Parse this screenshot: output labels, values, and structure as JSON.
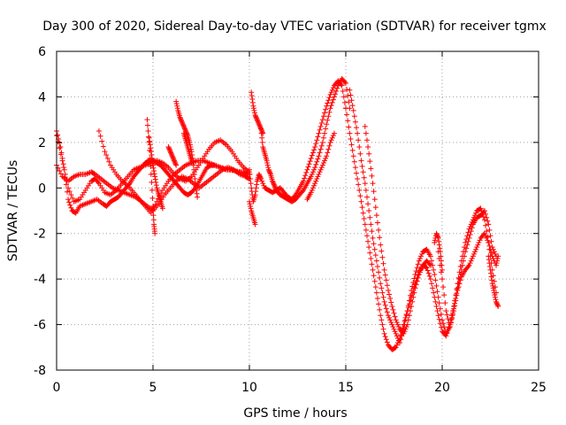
{
  "chart_data": {
    "type": "scatter",
    "title": "Day 300 of 2020, Sidereal Day-to-day VTEC variation (SDTVAR) for receiver tgmx",
    "xlabel": "GPS time / hours",
    "ylabel": "SDTVAR / TECUs",
    "xlim": [
      0,
      25
    ],
    "ylim": [
      -8,
      6
    ],
    "xticks": [
      "0",
      "5",
      "10",
      "15",
      "20",
      "25"
    ],
    "yticks": [
      "-8",
      "-6",
      "-4",
      "-2",
      "0",
      "2",
      "4",
      "6"
    ],
    "grid": true,
    "marker": "+",
    "color": "#ff0000",
    "series": [
      {
        "name": "s1",
        "x": [
          0.0,
          0.2,
          0.4,
          0.6,
          0.8,
          1.0,
          1.2,
          1.5,
          1.8,
          2.1,
          2.4,
          2.6,
          2.8,
          3.0,
          3.2,
          3.4,
          3.6,
          3.8,
          4.0,
          4.2,
          4.4,
          4.6,
          4.8,
          5.0,
          5.2,
          5.4,
          5.6,
          5.8,
          6.0,
          6.2,
          6.4,
          6.6,
          6.8,
          7.0,
          7.2,
          7.4,
          7.6,
          7.8,
          8.0,
          8.2,
          8.5,
          9.0,
          9.5,
          10.0
        ],
        "y": [
          2.5,
          1.8,
          0.8,
          -0.5,
          -1.0,
          -1.1,
          -0.8,
          -0.7,
          -0.6,
          -0.5,
          -0.7,
          -0.8,
          -0.6,
          -0.5,
          -0.4,
          -0.2,
          0.0,
          0.2,
          0.5,
          0.7,
          0.9,
          1.1,
          1.2,
          1.2,
          1.1,
          1.0,
          0.8,
          0.6,
          0.4,
          0.2,
          0.0,
          -0.2,
          -0.3,
          -0.2,
          0.0,
          0.3,
          0.6,
          0.9,
          1.0,
          1.0,
          0.9,
          0.8,
          0.7,
          0.6
        ]
      },
      {
        "name": "s2",
        "x": [
          0.0,
          0.3,
          0.6,
          0.9,
          1.2,
          1.5,
          1.8,
          2.0,
          2.2,
          2.5,
          2.8,
          3.1,
          3.4,
          3.7,
          4.0,
          4.3,
          4.6,
          4.9,
          5.2,
          5.5,
          5.8,
          6.1,
          6.4,
          6.7,
          7.0,
          7.3,
          7.6,
          7.9,
          8.2,
          8.5,
          8.8,
          9.1,
          9.4,
          9.7,
          10.0
        ],
        "y": [
          2.3,
          1.2,
          0.0,
          -0.6,
          -0.5,
          -0.1,
          0.3,
          0.4,
          0.2,
          -0.2,
          -0.3,
          -0.1,
          0.2,
          0.5,
          0.8,
          0.9,
          1.0,
          1.1,
          1.2,
          1.1,
          0.9,
          0.6,
          0.4,
          0.3,
          0.5,
          0.9,
          1.3,
          1.7,
          2.0,
          2.1,
          1.9,
          1.6,
          1.2,
          0.9,
          0.7
        ]
      },
      {
        "name": "s3",
        "x": [
          0.0,
          0.3,
          0.6,
          0.9,
          1.2,
          1.5,
          1.8,
          2.0,
          2.3,
          2.6,
          2.9,
          3.2,
          3.5,
          3.8,
          4.1,
          4.4,
          4.7,
          5.0,
          5.3,
          5.6,
          5.9,
          6.2,
          6.5,
          6.8,
          7.1,
          7.4,
          7.7,
          8.0,
          8.3,
          8.6,
          8.9,
          9.2,
          9.5,
          9.8,
          10.0
        ],
        "y": [
          1.0,
          0.5,
          0.3,
          0.5,
          0.6,
          0.6,
          0.7,
          0.6,
          0.4,
          0.2,
          0.0,
          -0.1,
          -0.2,
          -0.3,
          -0.4,
          -0.6,
          -0.8,
          -1.0,
          -0.7,
          -0.3,
          0.0,
          0.3,
          0.5,
          0.4,
          0.2,
          0.0,
          0.2,
          0.4,
          0.6,
          0.8,
          0.9,
          0.8,
          0.6,
          0.5,
          0.4
        ]
      },
      {
        "name": "s4",
        "x": [
          2.2,
          2.5,
          2.8,
          3.1,
          3.4,
          3.7,
          4.0,
          4.3,
          4.6,
          4.9,
          5.2,
          5.5,
          5.8,
          6.1,
          6.4,
          6.7,
          7.0,
          7.3,
          7.6,
          7.9,
          8.2,
          8.5,
          8.8,
          9.1,
          9.4,
          9.7,
          10.0
        ],
        "y": [
          2.5,
          1.6,
          1.0,
          0.6,
          0.3,
          0.1,
          -0.2,
          -0.5,
          -0.8,
          -1.1,
          -0.6,
          -0.1,
          0.3,
          0.6,
          0.8,
          1.0,
          1.1,
          1.2,
          1.2,
          1.1,
          1.0,
          0.9,
          0.8,
          0.8,
          0.7,
          0.7,
          0.6
        ]
      },
      {
        "name": "s5",
        "x": [
          4.7,
          4.8,
          4.9,
          5.0,
          5.05,
          5.1
        ],
        "y": [
          3.0,
          2.0,
          0.6,
          -0.8,
          -1.6,
          -2.0
        ]
      },
      {
        "name": "s6",
        "x": [
          4.8,
          4.9,
          5.0,
          5.1,
          5.2,
          5.3,
          5.4,
          5.5
        ],
        "y": [
          2.2,
          1.6,
          1.0,
          0.5,
          0.0,
          -0.3,
          -0.6,
          -0.9
        ]
      },
      {
        "name": "s7",
        "x": [
          6.2,
          6.3,
          6.4,
          6.5,
          6.6,
          6.7,
          6.8,
          6.9,
          7.0,
          7.1,
          7.2,
          7.3
        ],
        "y": [
          3.8,
          3.4,
          3.1,
          2.9,
          2.7,
          2.5,
          2.3,
          2.0,
          1.6,
          1.0,
          0.2,
          -0.4
        ]
      },
      {
        "name": "s8",
        "x": [
          6.6,
          6.7,
          6.8,
          6.9,
          7.0
        ],
        "y": [
          2.4,
          2.1,
          1.8,
          1.5,
          1.2
        ]
      },
      {
        "name": "s9",
        "x": [
          5.8,
          5.9,
          6.0,
          6.1,
          6.2
        ],
        "y": [
          1.8,
          1.6,
          1.4,
          1.2,
          1.0
        ]
      },
      {
        "name": "s10",
        "x": [
          10.1,
          10.2,
          10.3,
          10.4,
          10.5,
          10.6,
          10.7
        ],
        "y": [
          4.2,
          3.6,
          3.2,
          3.0,
          2.8,
          2.6,
          2.4
        ]
      },
      {
        "name": "s11",
        "x": [
          10.0,
          10.1,
          10.2,
          10.3,
          10.4,
          10.5,
          10.6,
          10.8,
          11.0,
          11.2,
          11.4,
          11.6,
          11.8,
          12.0,
          12.2,
          12.4,
          12.6,
          12.8,
          13.0,
          13.2,
          13.4,
          13.6,
          13.8,
          14.0,
          14.2,
          14.4,
          14.6,
          14.8,
          15.0
        ],
        "y": [
          0.8,
          0.0,
          -0.6,
          -0.3,
          0.3,
          0.6,
          0.4,
          0.0,
          -0.1,
          -0.2,
          -0.1,
          0.0,
          -0.2,
          -0.4,
          -0.5,
          -0.3,
          0.0,
          0.3,
          0.8,
          1.3,
          1.8,
          2.4,
          3.0,
          3.6,
          4.1,
          4.5,
          4.7,
          4.5,
          3.5
        ]
      },
      {
        "name": "s12",
        "x": [
          10.0,
          10.1,
          10.2,
          10.3
        ],
        "y": [
          -0.6,
          -1.0,
          -1.3,
          -1.6
        ]
      },
      {
        "name": "s13",
        "x": [
          10.6,
          10.7,
          10.8,
          10.9,
          11.0,
          11.1,
          11.2,
          11.3,
          11.4,
          11.5,
          11.6,
          11.8,
          12.0,
          12.2,
          12.4,
          12.6,
          12.8,
          13.0,
          13.2,
          13.4,
          13.6,
          13.8,
          14.0,
          14.2,
          14.4,
          14.6,
          14.8,
          15.0,
          15.2
        ],
        "y": [
          2.6,
          1.8,
          1.5,
          1.2,
          0.8,
          0.6,
          0.3,
          0.1,
          -0.1,
          -0.2,
          -0.3,
          -0.4,
          -0.5,
          -0.6,
          -0.5,
          -0.3,
          -0.1,
          0.2,
          0.5,
          0.9,
          1.4,
          2.0,
          2.8,
          3.5,
          4.0,
          4.5,
          4.8,
          4.6,
          3.5
        ]
      },
      {
        "name": "s14",
        "x": [
          13.0,
          13.2,
          13.4,
          13.6,
          13.8,
          14.0,
          14.2,
          14.4
        ],
        "y": [
          -0.5,
          -0.2,
          0.2,
          0.6,
          1.0,
          1.4,
          2.0,
          2.4
        ]
      },
      {
        "name": "s15",
        "x": [
          15.0,
          15.2,
          15.4,
          15.6,
          15.8,
          16.0,
          16.2,
          16.4,
          16.6,
          16.8,
          17.0,
          17.2,
          17.4,
          17.6,
          17.8,
          18.0,
          18.2,
          18.4,
          18.6,
          18.8,
          19.0,
          19.2,
          19.4,
          19.6,
          19.8,
          20.0,
          20.2,
          20.4,
          20.6,
          20.8,
          21.0,
          21.2,
          21.4,
          21.6,
          21.8,
          22.0,
          22.2,
          22.4,
          22.6,
          22.8
        ],
        "y": [
          3.5,
          2.4,
          1.4,
          0.4,
          -0.6,
          -1.6,
          -2.6,
          -3.6,
          -4.6,
          -5.6,
          -6.4,
          -6.9,
          -7.1,
          -7.0,
          -6.6,
          -6.0,
          -5.4,
          -4.8,
          -4.2,
          -3.7,
          -3.4,
          -3.5,
          -4.0,
          -4.8,
          -5.6,
          -6.3,
          -6.5,
          -6.0,
          -5.2,
          -4.2,
          -3.2,
          -2.4,
          -1.8,
          -1.4,
          -1.0,
          -0.9,
          -1.4,
          -2.4,
          -3.6,
          -4.6
        ]
      },
      {
        "name": "s16",
        "x": [
          15.2,
          15.4,
          15.6,
          15.8,
          16.0,
          16.2,
          16.4,
          16.6,
          16.8,
          17.0,
          17.2,
          17.4,
          17.6,
          17.8,
          18.0,
          18.2,
          18.4,
          18.6,
          18.8,
          19.0,
          19.2,
          19.4,
          19.6,
          19.8,
          20.0,
          20.2,
          20.4,
          20.6,
          20.8,
          21.0,
          21.2,
          21.4,
          21.6,
          21.8,
          22.0,
          22.2,
          22.4,
          22.6,
          22.8
        ],
        "y": [
          4.3,
          3.4,
          2.4,
          1.2,
          0.2,
          -1.0,
          -2.2,
          -3.2,
          -4.2,
          -5.0,
          -5.6,
          -6.0,
          -6.4,
          -6.8,
          -6.2,
          -5.4,
          -4.5,
          -3.8,
          -3.2,
          -2.8,
          -2.7,
          -3.0,
          -3.8,
          -4.8,
          -5.8,
          -6.4,
          -6.1,
          -5.3,
          -4.4,
          -3.6,
          -2.8,
          -2.2,
          -1.6,
          -1.3,
          -1.2,
          -1.0,
          -1.6,
          -2.6,
          -3.0
        ]
      },
      {
        "name": "s17",
        "x": [
          16.0,
          16.2,
          16.4,
          16.6,
          16.8,
          17.0,
          17.2,
          17.4,
          17.6,
          17.8,
          18.0,
          18.2,
          18.4,
          18.6,
          18.8,
          19.0,
          19.2,
          19.4
        ],
        "y": [
          2.7,
          1.5,
          0.2,
          -1.2,
          -2.5,
          -3.6,
          -4.5,
          -5.2,
          -5.8,
          -6.2,
          -6.4,
          -6.0,
          -5.2,
          -4.4,
          -3.8,
          -3.4,
          -3.2,
          -3.4
        ]
      },
      {
        "name": "s18",
        "x": [
          19.8,
          20.0,
          20.2,
          20.4,
          20.6,
          20.8,
          21.0,
          21.2,
          21.4,
          21.6,
          21.8,
          22.0,
          22.2,
          22.4,
          22.6,
          22.8,
          22.9
        ],
        "y": [
          -2.8,
          -4.0,
          -5.4,
          -6.1,
          -5.4,
          -4.5,
          -3.9,
          -3.6,
          -3.4,
          -3.0,
          -2.6,
          -2.2,
          -2.0,
          -2.4,
          -3.0,
          -3.4,
          -3.0
        ]
      },
      {
        "name": "s19",
        "x": [
          19.6,
          19.7,
          19.8,
          19.9,
          20.0
        ],
        "y": [
          -2.4,
          -2.0,
          -2.2,
          -2.8,
          -3.6
        ]
      },
      {
        "name": "s20",
        "x": [
          22.4,
          22.5,
          22.6,
          22.7,
          22.8,
          22.9
        ],
        "y": [
          -3.0,
          -3.6,
          -4.2,
          -4.6,
          -5.0,
          -5.2
        ]
      }
    ]
  }
}
